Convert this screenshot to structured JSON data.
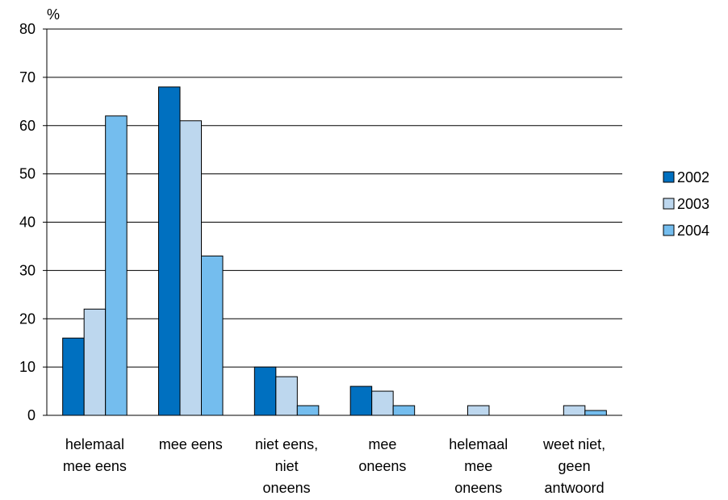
{
  "chart_data": {
    "type": "bar",
    "ylabel": "%",
    "ylim": [
      0,
      80
    ],
    "yticks": [
      0,
      10,
      20,
      30,
      40,
      50,
      60,
      70,
      80
    ],
    "grid": true,
    "legend_position": "right",
    "categories": [
      [
        "helemaal",
        "mee eens"
      ],
      [
        "mee eens"
      ],
      [
        "niet eens,",
        "niet",
        "oneens"
      ],
      [
        "mee",
        "oneens"
      ],
      [
        "helemaal",
        "mee",
        "oneens"
      ],
      [
        "weet niet,",
        "geen",
        "antwoord"
      ]
    ],
    "series": [
      {
        "name": "2002",
        "color": "#0070c0",
        "values": [
          16,
          68,
          10,
          6,
          0,
          0
        ]
      },
      {
        "name": "2003",
        "color": "#bdd7ee",
        "values": [
          22,
          61,
          8,
          5,
          2,
          2
        ]
      },
      {
        "name": "2004",
        "color": "#74bdee",
        "values": [
          62,
          33,
          2,
          2,
          0,
          1
        ]
      }
    ]
  }
}
